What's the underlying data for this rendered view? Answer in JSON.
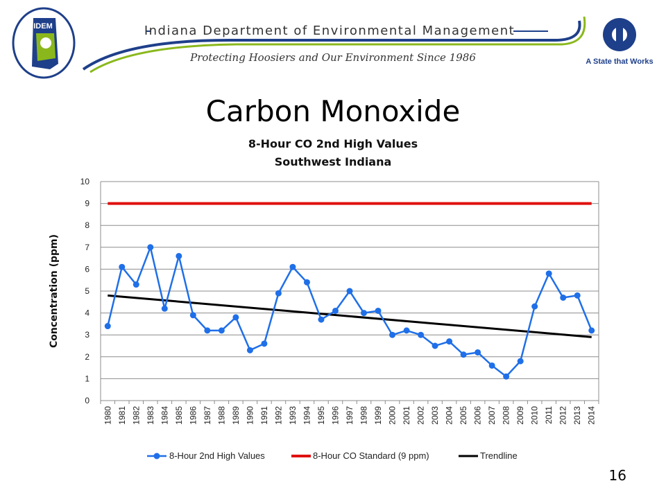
{
  "header": {
    "agency_name": "Indiana Department of Environmental Management",
    "tagline": "Protecting Hoosiers and Our Environment Since 1986",
    "left_logo_text": "IDEM",
    "right_logo_text": "A State that Works"
  },
  "slide": {
    "title": "Carbon Monoxide",
    "page_number": "16"
  },
  "colors": {
    "series": "#1f6fe8",
    "standard": "#e01010",
    "trendline": "#000000",
    "header_blue": "#1e3f8a",
    "header_green": "#8ab81c"
  },
  "chart_data": {
    "type": "line",
    "title": "8-Hour CO 2nd High Values",
    "subtitle": "Southwest Indiana",
    "ylabel": "Concentration (ppm)",
    "xlabel": "",
    "ylim": [
      0,
      10
    ],
    "yticks": [
      "0",
      "1",
      "2",
      "3",
      "4",
      "5",
      "6",
      "7",
      "8",
      "9",
      "10"
    ],
    "grid": true,
    "legend_position": "bottom",
    "categories": [
      "1980",
      "1981",
      "1982",
      "1983",
      "1984",
      "1985",
      "1986",
      "1987",
      "1988",
      "1989",
      "1990",
      "1991",
      "1992",
      "1993",
      "1994",
      "1995",
      "1996",
      "1997",
      "1998",
      "1999",
      "2000",
      "2001",
      "2002",
      "2003",
      "2004",
      "2005",
      "2006",
      "2007",
      "2008",
      "2009",
      "2010",
      "2011",
      "2012",
      "2013",
      "2014"
    ],
    "series": [
      {
        "name": "8-Hour 2nd High Values",
        "type": "line-marker",
        "values": [
          3.4,
          6.1,
          5.3,
          7.0,
          4.2,
          6.6,
          3.9,
          3.2,
          3.2,
          3.8,
          2.3,
          2.6,
          4.9,
          6.1,
          5.4,
          3.7,
          4.1,
          5.0,
          4.0,
          4.1,
          3.0,
          3.2,
          3.0,
          2.5,
          2.7,
          2.1,
          2.2,
          1.6,
          1.1,
          1.8,
          4.3,
          5.8,
          4.7,
          4.8,
          3.2
        ]
      },
      {
        "name": "8-Hour CO Standard (9 ppm)",
        "type": "line",
        "values_constant": 9
      },
      {
        "name": "Trendline",
        "type": "linear-trend",
        "start": 4.8,
        "end": 2.9
      }
    ]
  }
}
